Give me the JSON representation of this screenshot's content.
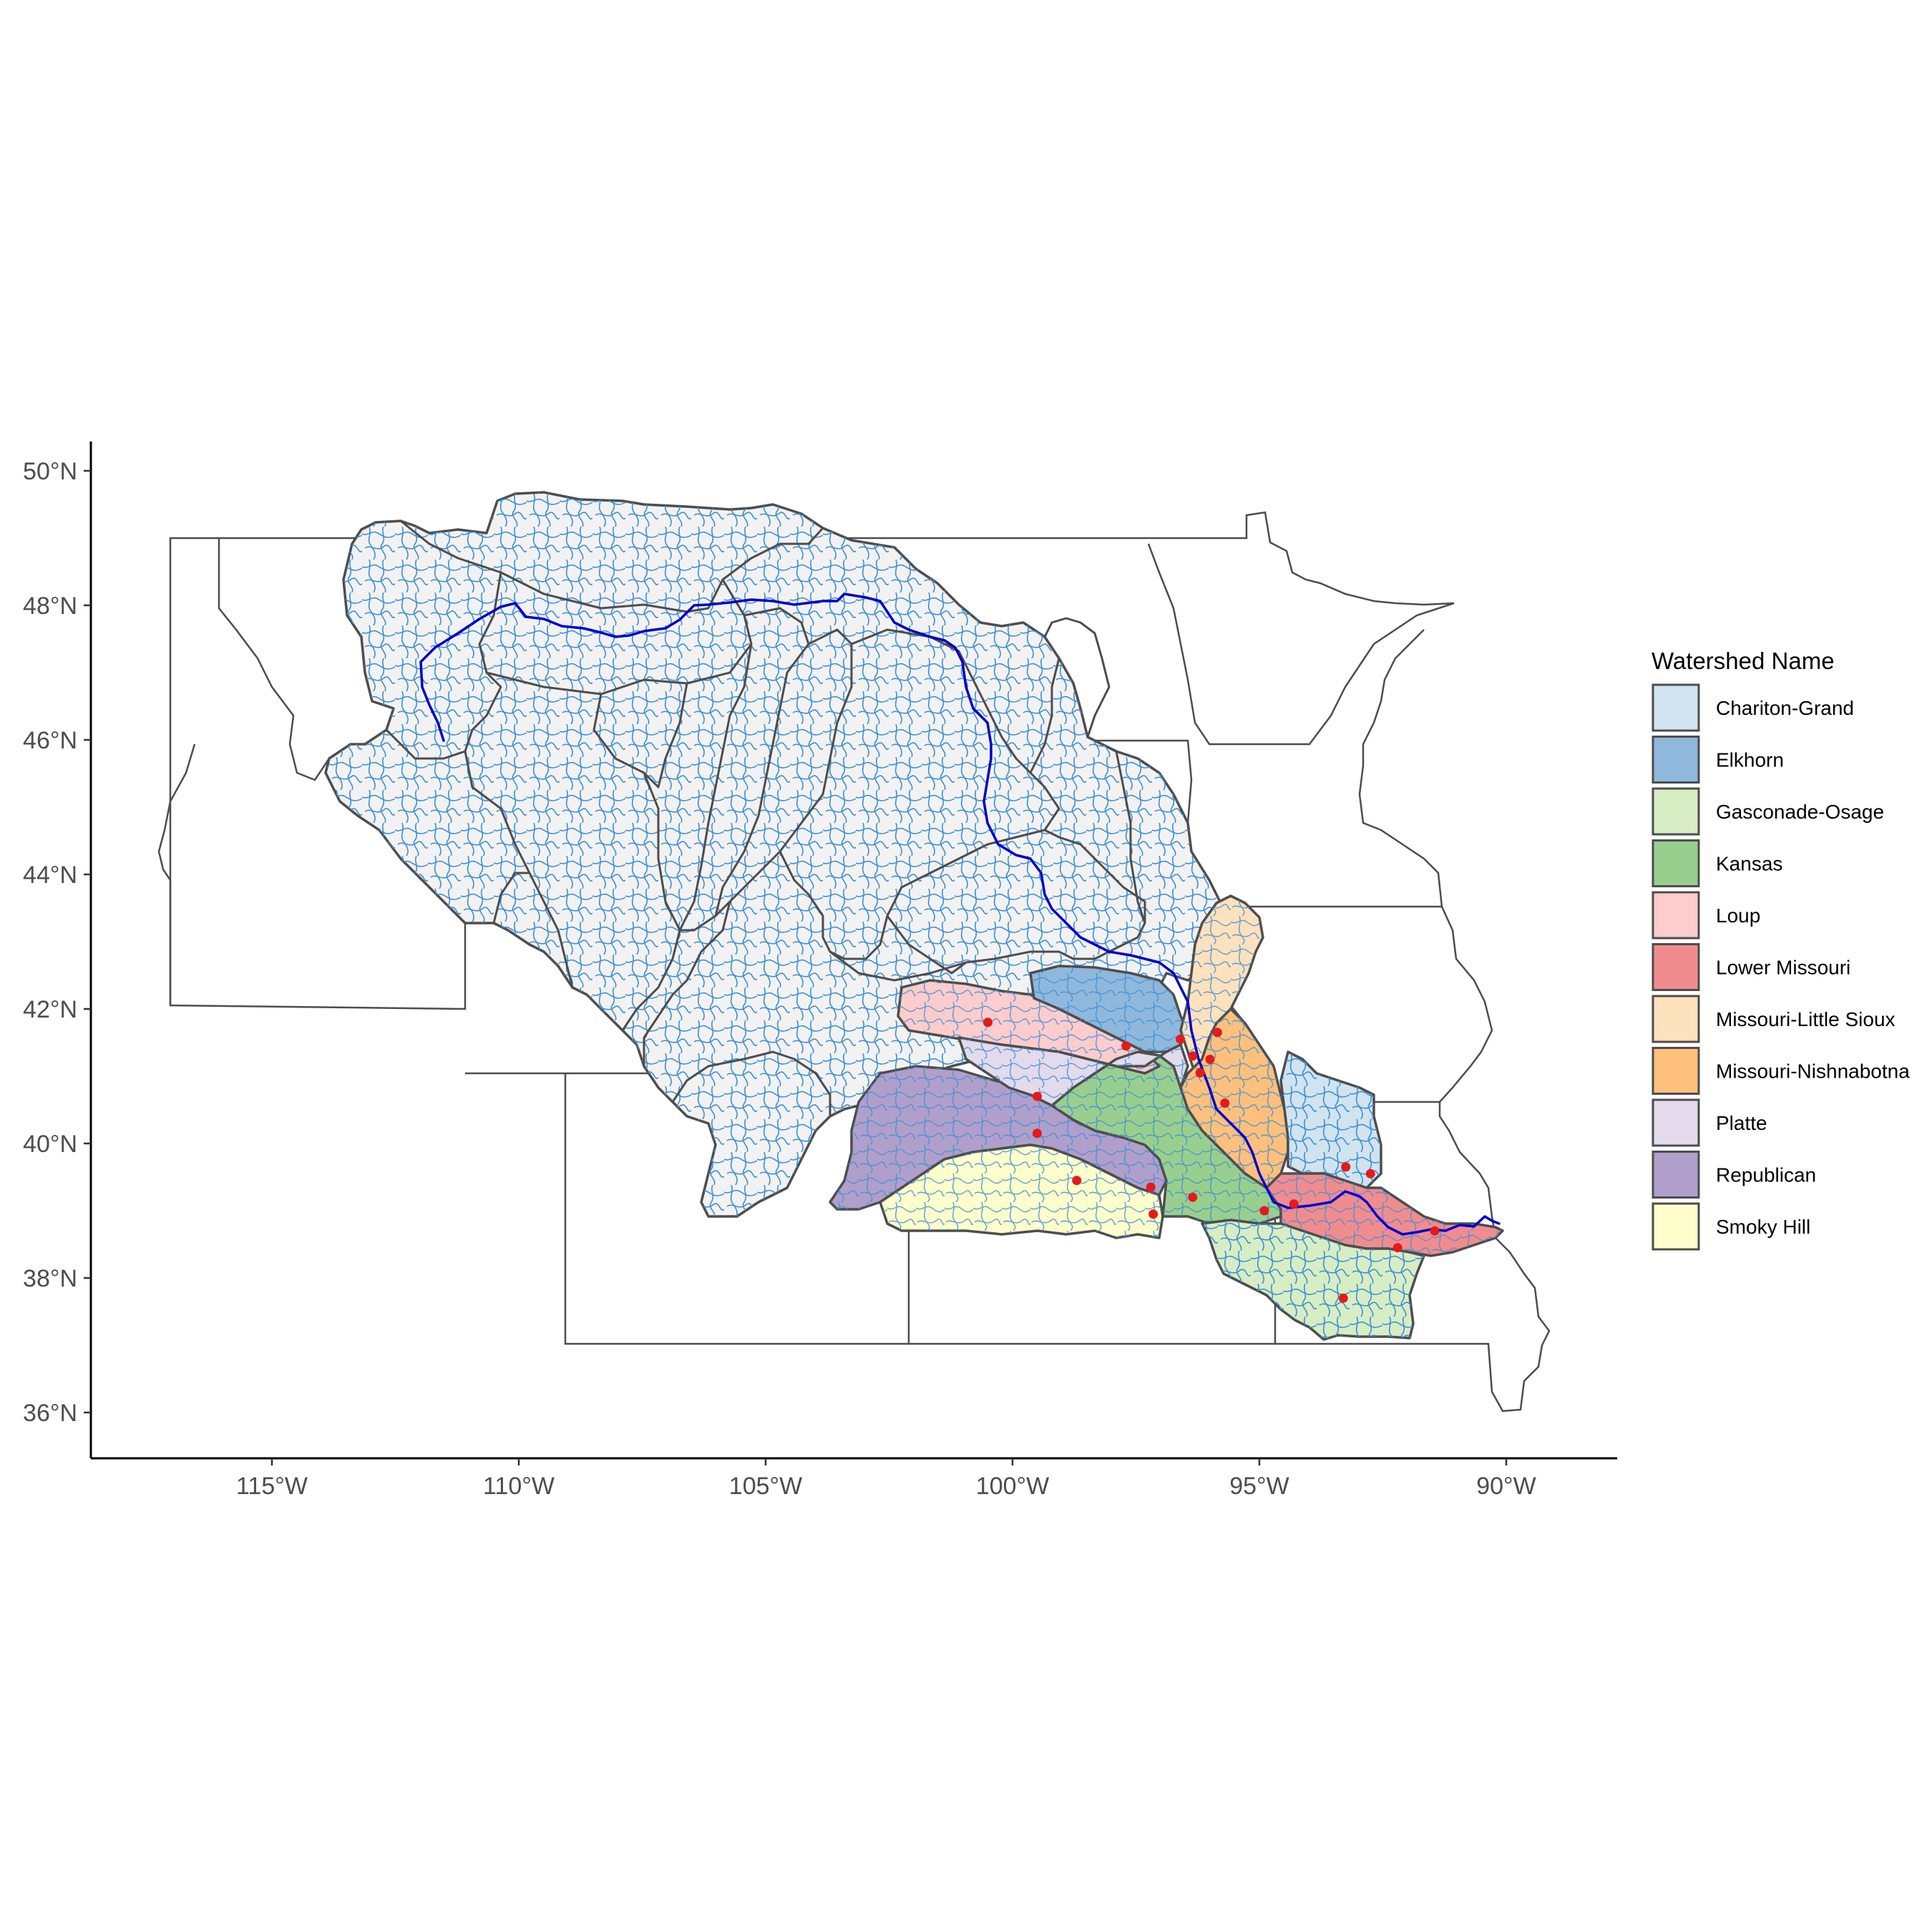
{
  "axes": {
    "x_ticks": [
      "115°W",
      "110°W",
      "105°W",
      "100°W",
      "95°W",
      "90°W"
    ],
    "y_ticks": [
      "50°N",
      "48°N",
      "46°N",
      "44°N",
      "42°N",
      "40°N",
      "38°N",
      "36°N"
    ],
    "x_range_deg": [
      -118.7,
      -87.7
    ],
    "y_range_deg": [
      35.3,
      50.4
    ]
  },
  "legend": {
    "title": "Watershed Name",
    "placement": "right",
    "items": [
      {
        "label": "Chariton-Grand",
        "color": "#d0e3ef"
      },
      {
        "label": "Elkhorn",
        "color": "#8fb8dc"
      },
      {
        "label": "Gasconade-Osage",
        "color": "#d7edc4"
      },
      {
        "label": "Kansas",
        "color": "#99cf8e"
      },
      {
        "label": "Loup",
        "color": "#fdcccc"
      },
      {
        "label": "Lower Missouri",
        "color": "#f18c8e"
      },
      {
        "label": "Missouri-Little Sioux",
        "color": "#fee1bd"
      },
      {
        "label": "Missouri-Nishnabotna",
        "color": "#fec07c"
      },
      {
        "label": "Platte",
        "color": "#e3daec"
      },
      {
        "label": "Republican",
        "color": "#b19fcb"
      },
      {
        "label": "Smoky Hill",
        "color": "#fefecc"
      }
    ]
  },
  "colors": {
    "basin_fill": "#f2f2f2",
    "stream": "#3d8fd6",
    "mainstem": "#0000cc",
    "gauge": "#e41a1c",
    "boundary": "#4d4d4d"
  },
  "gauges": [
    {
      "lon": -100.5,
      "lat": 41.8
    },
    {
      "lon": -97.7,
      "lat": 41.45
    },
    {
      "lon": -96.6,
      "lat": 41.55
    },
    {
      "lon": -96.35,
      "lat": 41.3
    },
    {
      "lon": -96.0,
      "lat": 41.25
    },
    {
      "lon": -95.85,
      "lat": 41.65
    },
    {
      "lon": -96.2,
      "lat": 41.05
    },
    {
      "lon": -95.7,
      "lat": 40.6
    },
    {
      "lon": -99.5,
      "lat": 40.7
    },
    {
      "lon": -99.5,
      "lat": 40.15
    },
    {
      "lon": -98.7,
      "lat": 39.45
    },
    {
      "lon": -97.2,
      "lat": 39.35
    },
    {
      "lon": -97.15,
      "lat": 38.95
    },
    {
      "lon": -96.35,
      "lat": 39.2
    },
    {
      "lon": -94.9,
      "lat": 39.0
    },
    {
      "lon": -94.3,
      "lat": 39.1
    },
    {
      "lon": -93.25,
      "lat": 39.65
    },
    {
      "lon": -92.75,
      "lat": 39.55
    },
    {
      "lon": -92.2,
      "lat": 38.45
    },
    {
      "lon": -91.45,
      "lat": 38.7
    },
    {
      "lon": -93.3,
      "lat": 37.7
    }
  ]
}
